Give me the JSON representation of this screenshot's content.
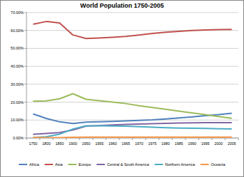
{
  "chart_data": {
    "type": "line",
    "title": "World Population 1750-2005",
    "categories": [
      "1750",
      "1800",
      "1850",
      "1900",
      "1950",
      "1955",
      "1960",
      "1965",
      "1970",
      "1975",
      "1980",
      "1985",
      "1990",
      "1995",
      "2000",
      "2005"
    ],
    "series": [
      {
        "name": "Africa",
        "color": "#4f81bd",
        "values": [
          13.4,
          10.9,
          9.0,
          8.1,
          8.8,
          9.0,
          9.2,
          9.5,
          9.8,
          10.1,
          10.6,
          11.2,
          11.8,
          12.4,
          13.0,
          13.8
        ]
      },
      {
        "name": "Asia",
        "color": "#c0504d",
        "values": [
          63.5,
          65.0,
          64.2,
          57.5,
          55.5,
          55.8,
          56.2,
          56.7,
          57.5,
          58.3,
          59.0,
          59.5,
          60.0,
          60.3,
          60.5,
          60.6
        ]
      },
      {
        "name": "Europe",
        "color": "#9bbb59",
        "values": [
          20.5,
          20.7,
          21.9,
          24.7,
          21.6,
          20.8,
          20.0,
          19.2,
          18.0,
          17.0,
          16.0,
          15.0,
          14.0,
          13.0,
          12.0,
          11.0
        ]
      },
      {
        "name": "Central & South America",
        "color": "#8064a2",
        "values": [
          2.0,
          2.5,
          3.0,
          4.5,
          6.6,
          6.9,
          7.3,
          7.6,
          7.8,
          8.0,
          8.2,
          8.4,
          8.5,
          8.6,
          8.6,
          8.6
        ]
      },
      {
        "name": "Northern America",
        "color": "#4bacc6",
        "values": [
          0.3,
          0.7,
          2.1,
          5.0,
          6.8,
          6.8,
          6.7,
          6.6,
          6.3,
          6.0,
          5.7,
          5.5,
          5.4,
          5.3,
          5.2,
          5.1
        ]
      },
      {
        "name": "Oceania",
        "color": "#f79646",
        "values": [
          0.3,
          0.2,
          0.2,
          0.4,
          0.5,
          0.5,
          0.5,
          0.5,
          0.5,
          0.5,
          0.5,
          0.5,
          0.5,
          0.5,
          0.5,
          0.5
        ]
      }
    ],
    "ylim": [
      0,
      70
    ],
    "yticks": [
      {
        "value": 0,
        "label": "0.00%"
      },
      {
        "value": 10,
        "label": "10.00%"
      },
      {
        "value": 20,
        "label": "20.00%"
      },
      {
        "value": 30,
        "label": "30.00%"
      },
      {
        "value": 40,
        "label": "40.00%"
      },
      {
        "value": 50,
        "label": "50.00%"
      },
      {
        "value": 60,
        "label": "60.00%"
      },
      {
        "value": 70,
        "label": "70.00%"
      }
    ],
    "grid": true,
    "legend": "bottom"
  }
}
